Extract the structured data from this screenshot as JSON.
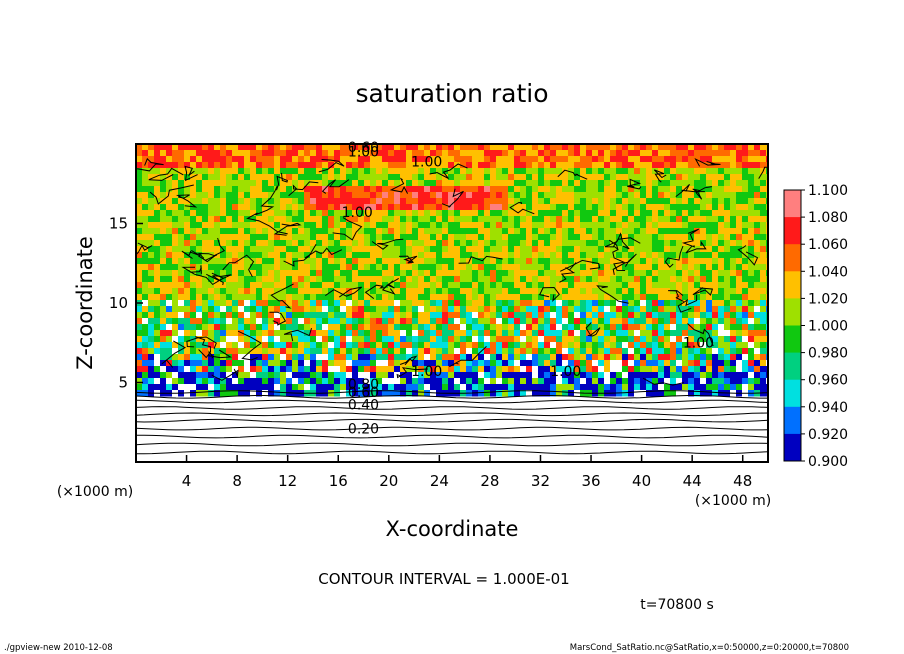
{
  "chart_data": {
    "type": "heatmap",
    "title": "saturation ratio",
    "xlabel": "X-coordinate",
    "ylabel": "Z-coordinate",
    "x_unit": "(×1000 m)",
    "y_unit": "(×1000 m)",
    "xlim": [
      0,
      50
    ],
    "ylim": [
      0,
      20
    ],
    "x_ticks": [
      "4",
      "8",
      "12",
      "16",
      "20",
      "24",
      "28",
      "32",
      "36",
      "40",
      "44",
      "48"
    ],
    "y_ticks": [
      "5",
      "10",
      "15"
    ],
    "colorbar": {
      "levels": [
        "1.100",
        "1.080",
        "1.060",
        "1.040",
        "1.020",
        "1.000",
        "0.980",
        "0.960",
        "0.940",
        "0.920",
        "0.900"
      ],
      "colors": [
        "#ff7f7f",
        "#ff1a1a",
        "#ff6a00",
        "#ffc000",
        "#9fe000",
        "#10c810",
        "#00d080",
        "#00e0e0",
        "#0070ff",
        "#0000c0",
        "#7000c0"
      ]
    },
    "contour_labels": [
      "0.60",
      "1.00",
      "1.00",
      "1.00",
      "1.00",
      "1.00",
      "1.00",
      "0.80",
      "0.60",
      "0.40",
      "0.20"
    ],
    "contour_interval_text": "CONTOUR INTERVAL = 1.000E-01",
    "time_text": "t=70800 s",
    "footer_left": "./gpview-new 2010-12-08",
    "footer_right": "MarsCond_SatRatio.nc@SatRatio,x=0:50000,z=0:20000,t=70800",
    "grid": false
  }
}
